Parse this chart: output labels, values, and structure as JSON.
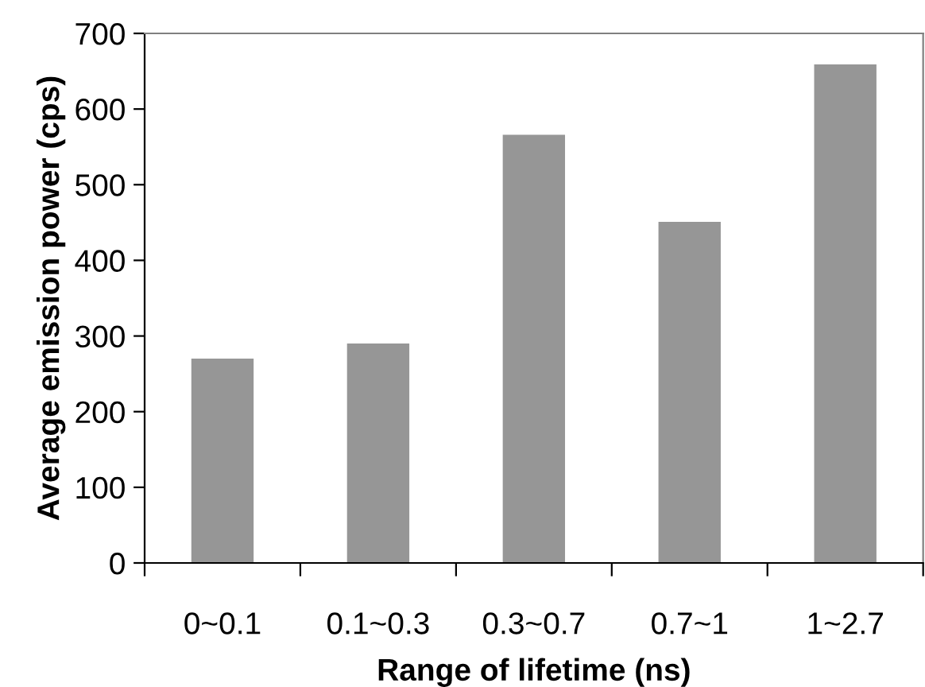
{
  "chart_data": {
    "type": "bar",
    "xlabel": "Range of lifetime (ns)",
    "ylabel": "Average emission power (cps)",
    "categories": [
      "0~0.1",
      "0.1~0.3",
      "0.3~0.7",
      "0.7~1",
      "1~2.7"
    ],
    "values": [
      270,
      290,
      566,
      451,
      659
    ],
    "color": "#969696",
    "ylim": [
      0,
      700
    ],
    "yticks": [
      0,
      100,
      200,
      300,
      400,
      500,
      600,
      700
    ],
    "grid": false,
    "legend": false
  }
}
